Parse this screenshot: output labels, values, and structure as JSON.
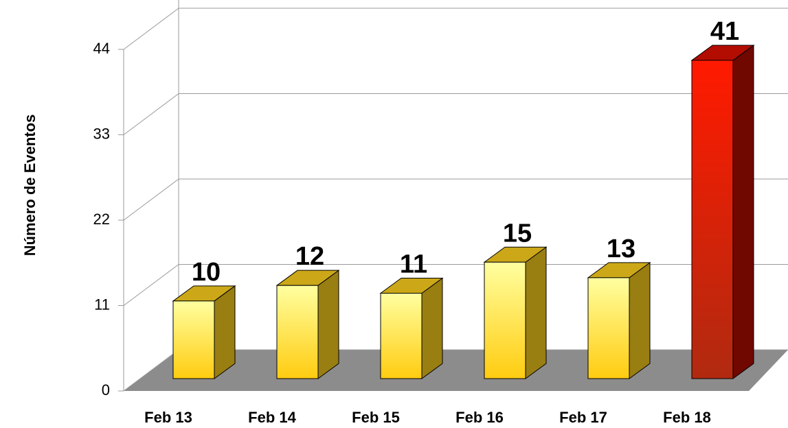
{
  "chart_data": {
    "type": "bar3d",
    "y_label": "Número de Eventos",
    "categories": [
      "Feb 13",
      "Feb 14",
      "Feb 15",
      "Feb 16",
      "Feb 17",
      "Feb 18"
    ],
    "values": [
      10,
      12,
      11,
      15,
      13,
      41
    ],
    "colors": [
      "#ffd21e",
      "#ffd21e",
      "#ffd21e",
      "#ffd21e",
      "#ffd21e",
      "#e01000"
    ],
    "ylim": [
      0,
      44
    ],
    "yticks": [
      0,
      11,
      22,
      33,
      44
    ],
    "grid": true
  }
}
